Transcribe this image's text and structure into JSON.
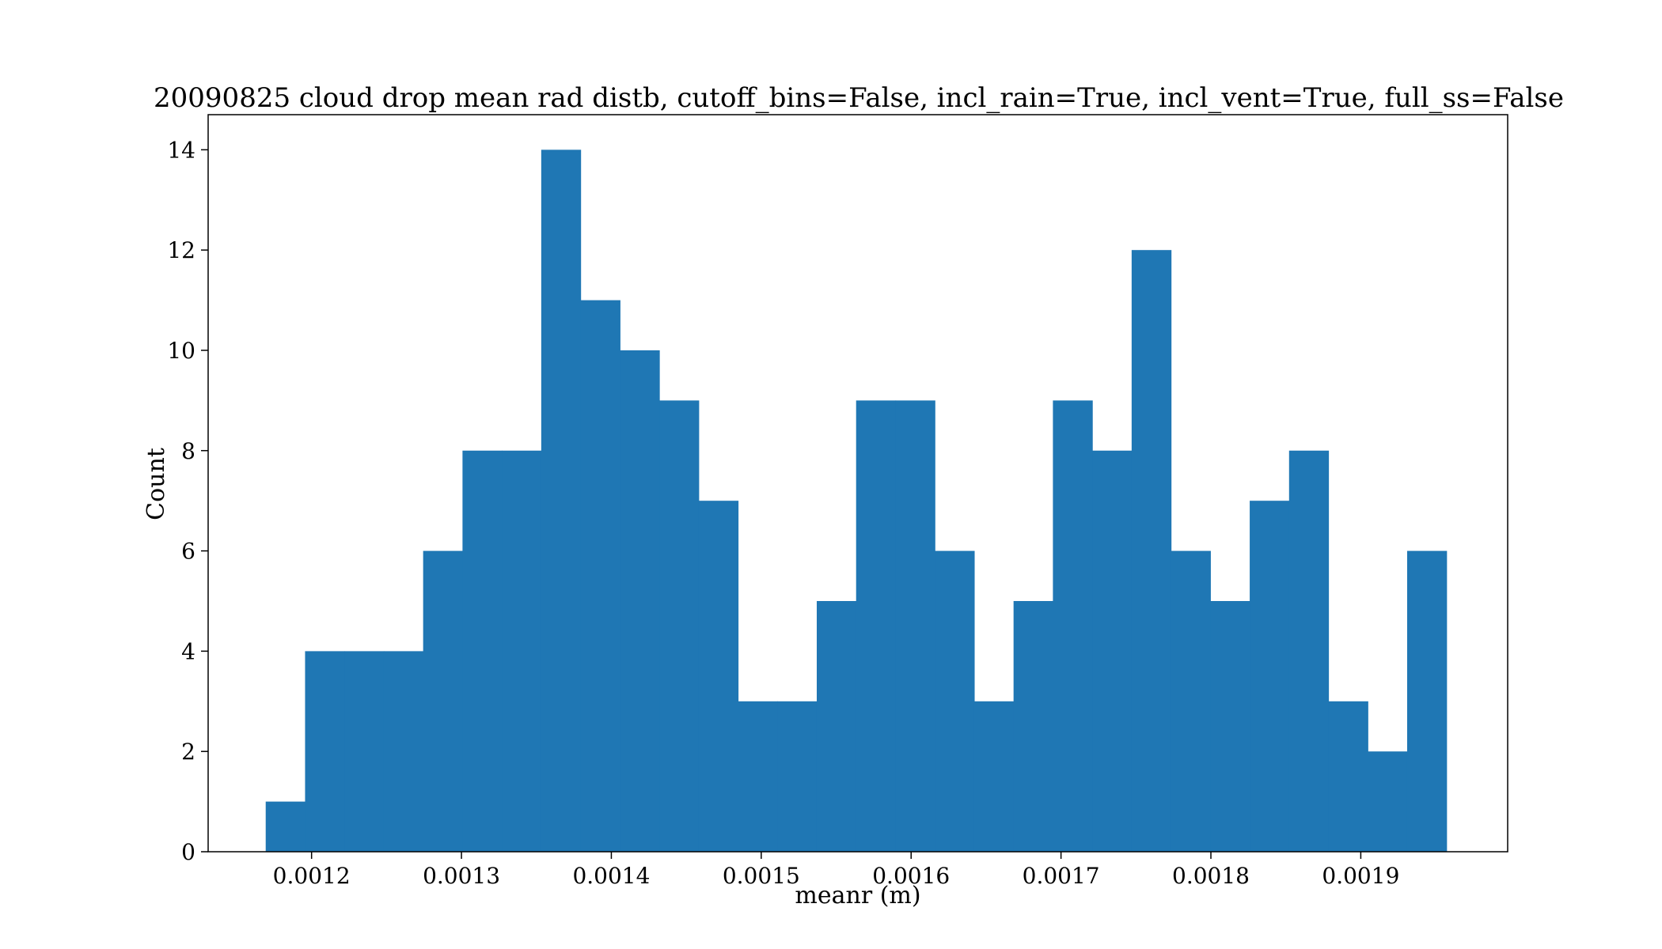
{
  "chart_data": {
    "type": "bar",
    "title": "20090825 cloud drop mean rad distb, cutoff_bins=False, incl_rain=True, incl_vent=True, full_ss=False",
    "xlabel": "meanr (m)",
    "ylabel": "Count",
    "xlim": [
      0.001131,
      0.001998
    ],
    "ylim": [
      0,
      14.7
    ],
    "grid": false,
    "bar_color": "#1f77b4",
    "bins": {
      "start": 0.0011694,
      "width": 2.626e-05,
      "counts": [
        1,
        4,
        4,
        4,
        6,
        8,
        8,
        14,
        11,
        10,
        9,
        7,
        3,
        3,
        5,
        9,
        9,
        6,
        3,
        5,
        9,
        8,
        12,
        6,
        5,
        7,
        8,
        3,
        2,
        6
      ]
    },
    "xticks": [
      {
        "value": 0.0012,
        "label": "0.0012"
      },
      {
        "value": 0.0013,
        "label": "0.0013"
      },
      {
        "value": 0.0014,
        "label": "0.0014"
      },
      {
        "value": 0.0015,
        "label": "0.0015"
      },
      {
        "value": 0.0016,
        "label": "0.0016"
      },
      {
        "value": 0.0017,
        "label": "0.0017"
      },
      {
        "value": 0.0018,
        "label": "0.0018"
      },
      {
        "value": 0.0019,
        "label": "0.0019"
      }
    ],
    "yticks": [
      {
        "value": 0,
        "label": "0"
      },
      {
        "value": 2,
        "label": "2"
      },
      {
        "value": 4,
        "label": "4"
      },
      {
        "value": 6,
        "label": "6"
      },
      {
        "value": 8,
        "label": "8"
      },
      {
        "value": 10,
        "label": "10"
      },
      {
        "value": 12,
        "label": "12"
      },
      {
        "value": 14,
        "label": "14"
      }
    ]
  }
}
